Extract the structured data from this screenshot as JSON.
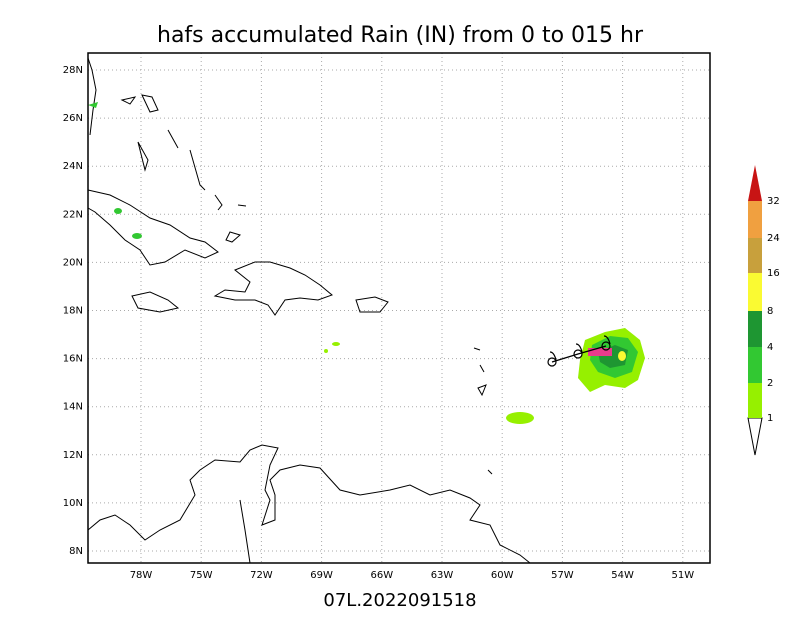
{
  "title": "hafs accumulated Rain (IN) from 0 to 015 hr",
  "footer": "07L.2022091518",
  "lat_labels": [
    "8N",
    "10N",
    "12N",
    "14N",
    "16N",
    "18N",
    "20N",
    "22N",
    "24N",
    "26N",
    "28N"
  ],
  "lon_labels": [
    "78W",
    "75W",
    "72W",
    "69W",
    "66W",
    "63W",
    "60W",
    "57W",
    "54W",
    "51W"
  ],
  "colorbar": {
    "labels": [
      "1",
      "2",
      "4",
      "8",
      "16",
      "24",
      "32"
    ]
  }
}
